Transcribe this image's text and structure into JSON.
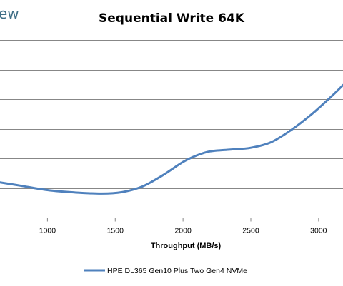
{
  "watermark": "ew",
  "chart_data": {
    "type": "line",
    "title": "Sequential Write 64K",
    "xlabel": "Throughput (MB/s)",
    "ylabel": "",
    "xlim": [
      650,
      3180
    ],
    "ylim": [
      0,
      7
    ],
    "x_ticks": [
      1000,
      1500,
      2000,
      2500,
      3000
    ],
    "grid": "horizontal",
    "legend_position": "bottom",
    "series": [
      {
        "name": "HPE DL365 Gen10 Plus Two Gen4 NVMe",
        "color": "#4f81bd",
        "x": [
          650,
          800,
          1000,
          1200,
          1400,
          1550,
          1700,
          1850,
          2000,
          2100,
          2200,
          2350,
          2500,
          2650,
          2800,
          2950,
          3100,
          3180
        ],
        "y": [
          1.19,
          1.08,
          0.93,
          0.85,
          0.81,
          0.86,
          1.05,
          1.43,
          1.88,
          2.1,
          2.24,
          2.3,
          2.36,
          2.55,
          2.97,
          3.5,
          4.12,
          4.48
        ]
      }
    ]
  }
}
